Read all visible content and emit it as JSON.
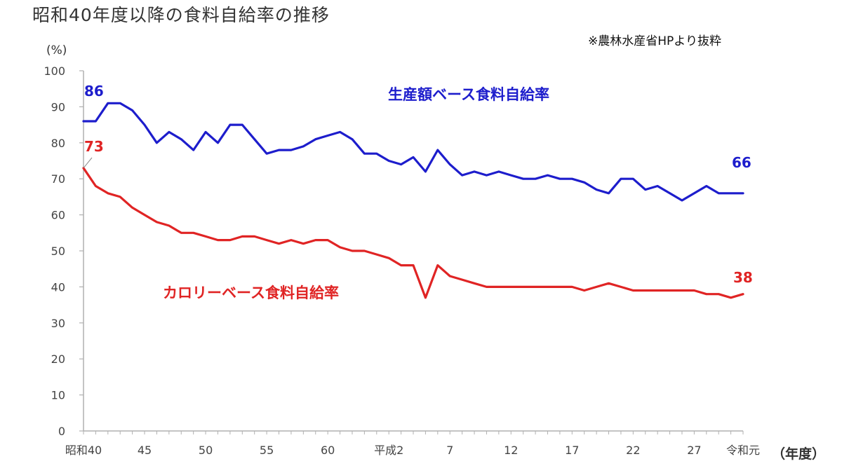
{
  "title": "昭和40年度以降の食料自給率の推移",
  "source_note": "※農林水産省HPより抜粋",
  "chart_data": {
    "type": "line",
    "title": "昭和40年度以降の食料自給率の推移",
    "ylabel": "(%)",
    "xlabel": "（年度）",
    "ylim": [
      0,
      100
    ],
    "yticks": [
      0,
      10,
      20,
      30,
      40,
      50,
      60,
      70,
      80,
      90,
      100
    ],
    "grid": false,
    "x_tick_labels": [
      {
        "index": 0,
        "label": "昭和40"
      },
      {
        "index": 5,
        "label": "45"
      },
      {
        "index": 10,
        "label": "50"
      },
      {
        "index": 15,
        "label": "55"
      },
      {
        "index": 20,
        "label": "60"
      },
      {
        "index": 25,
        "label": "平成2"
      },
      {
        "index": 30,
        "label": "7"
      },
      {
        "index": 35,
        "label": "12"
      },
      {
        "index": 40,
        "label": "17"
      },
      {
        "index": 45,
        "label": "22"
      },
      {
        "index": 50,
        "label": "27"
      },
      {
        "index": 54,
        "label": "令和元"
      }
    ],
    "series": [
      {
        "name": "生産額ベース食料自給率",
        "color": "#1d1dcc",
        "start_label": "86",
        "end_label": "66",
        "values": [
          86,
          86,
          91,
          91,
          89,
          85,
          80,
          83,
          81,
          78,
          83,
          80,
          85,
          85,
          81,
          77,
          78,
          78,
          79,
          81,
          82,
          83,
          81,
          77,
          77,
          75,
          74,
          76,
          72,
          78,
          74,
          71,
          72,
          71,
          72,
          71,
          70,
          70,
          71,
          70,
          70,
          69,
          67,
          66,
          70,
          70,
          67,
          68,
          66,
          64,
          66,
          68,
          66,
          66,
          66
        ]
      },
      {
        "name": "カロリーベース食料自給率",
        "color": "#e02424",
        "start_label": "73",
        "end_label": "38",
        "values": [
          73,
          68,
          66,
          65,
          62,
          60,
          58,
          57,
          55,
          55,
          54,
          53,
          53,
          54,
          54,
          53,
          52,
          53,
          52,
          53,
          53,
          51,
          50,
          50,
          49,
          48,
          46,
          46,
          37,
          46,
          43,
          42,
          41,
          40,
          40,
          40,
          40,
          40,
          40,
          40,
          40,
          39,
          40,
          41,
          40,
          39,
          39,
          39,
          39,
          39,
          39,
          38,
          38,
          37,
          38
        ]
      }
    ]
  }
}
